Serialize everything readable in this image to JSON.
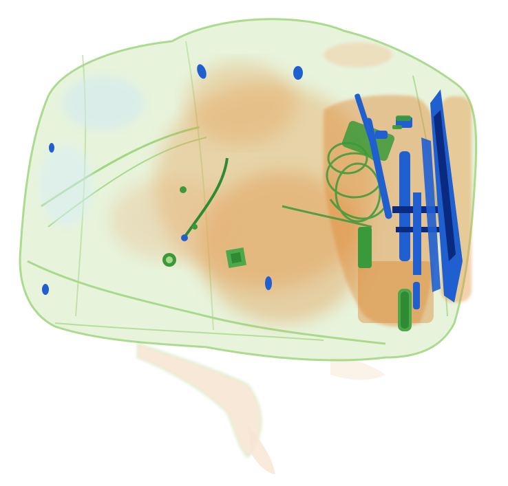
{
  "image": {
    "kind": "x-ray baggage scan",
    "palette": {
      "background": "#ffffff",
      "organic": "#e59a4a",
      "organic_dense": "#d9822b",
      "mixed": "#8fcf6a",
      "mixed_dense": "#3a9a3a",
      "metal": "#1f5fd0",
      "metal_dark": "#0a2a80",
      "outline_light": "#a8d98a"
    },
    "objects": [
      {
        "name": "backpack-shell"
      },
      {
        "name": "strap"
      },
      {
        "name": "zipper-pull"
      },
      {
        "name": "zipper-slider"
      },
      {
        "name": "cable-bundle"
      },
      {
        "name": "metal-tool"
      },
      {
        "name": "blade"
      },
      {
        "name": "battery"
      },
      {
        "name": "square-chip"
      }
    ]
  }
}
